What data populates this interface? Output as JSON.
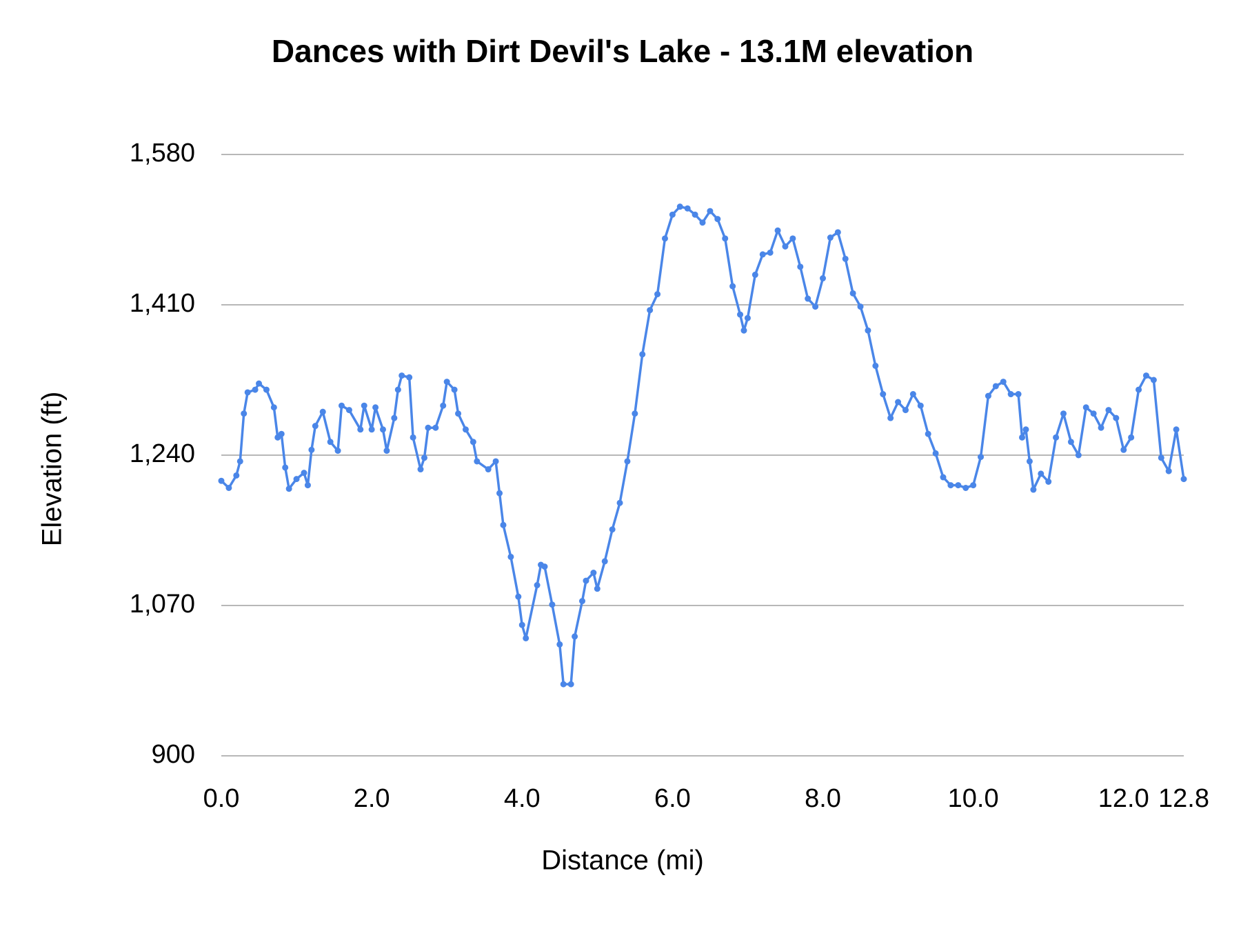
{
  "chart_data": {
    "type": "line",
    "title": "Dances with Dirt Devil's Lake - 13.1M elevation",
    "x_label": "Distance (mi)",
    "y_label": "Elevation (ft)",
    "x": [
      0,
      0.1,
      0.2,
      0.25,
      0.3,
      0.35,
      0.45,
      0.5,
      0.6,
      0.7,
      0.75,
      0.8,
      0.85,
      0.9,
      1.0,
      1.1,
      1.15,
      1.2,
      1.25,
      1.35,
      1.45,
      1.55,
      1.6,
      1.7,
      1.85,
      1.9,
      2.0,
      2.05,
      2.15,
      2.2,
      2.3,
      2.35,
      2.4,
      2.5,
      2.55,
      2.65,
      2.7,
      2.75,
      2.85,
      2.95,
      3.0,
      3.1,
      3.15,
      3.25,
      3.35,
      3.4,
      3.55,
      3.65,
      3.7,
      3.75,
      3.85,
      3.95,
      4.0,
      4.05,
      4.2,
      4.25,
      4.3,
      4.4,
      4.5,
      4.55,
      4.65,
      4.7,
      4.8,
      4.85,
      4.95,
      5.0,
      5.1,
      5.2,
      5.3,
      5.4,
      5.5,
      5.6,
      5.7,
      5.8,
      5.9,
      6.0,
      6.1,
      6.2,
      6.3,
      6.4,
      6.5,
      6.6,
      6.7,
      6.8,
      6.9,
      6.95,
      7.0,
      7.1,
      7.2,
      7.3,
      7.4,
      7.5,
      7.6,
      7.7,
      7.8,
      7.9,
      8.0,
      8.1,
      8.2,
      8.3,
      8.4,
      8.5,
      8.6,
      8.7,
      8.8,
      8.9,
      9.0,
      9.1,
      9.2,
      9.3,
      9.4,
      9.5,
      9.6,
      9.7,
      9.8,
      9.9,
      10.0,
      10.1,
      10.2,
      10.3,
      10.4,
      10.5,
      10.6,
      10.65,
      10.7,
      10.75,
      10.8,
      10.9,
      11.0,
      11.1,
      11.2,
      11.3,
      11.4,
      11.5,
      11.6,
      11.7,
      11.8,
      11.9,
      12.0,
      12.1,
      12.2,
      12.3,
      12.4,
      12.5,
      12.6,
      12.7,
      12.8
    ],
    "values": [
      1211,
      1203,
      1217,
      1233,
      1287,
      1311,
      1314,
      1321,
      1314,
      1294,
      1260,
      1264,
      1226,
      1202,
      1213,
      1220,
      1206,
      1246,
      1273,
      1289,
      1255,
      1245,
      1296,
      1291,
      1269,
      1296,
      1269,
      1294,
      1269,
      1245,
      1282,
      1314,
      1330,
      1328,
      1260,
      1224,
      1237,
      1271,
      1271,
      1296,
      1323,
      1314,
      1287,
      1269,
      1255,
      1233,
      1224,
      1233,
      1197,
      1161,
      1125,
      1080,
      1048,
      1033,
      1093,
      1116,
      1114,
      1071,
      1026,
      981,
      981,
      1035,
      1075,
      1098,
      1107,
      1089,
      1120,
      1156,
      1186,
      1233,
      1287,
      1354,
      1404,
      1422,
      1485,
      1512,
      1521,
      1519,
      1512,
      1503,
      1516,
      1507,
      1485,
      1431,
      1399,
      1381,
      1395,
      1444,
      1467,
      1469,
      1494,
      1476,
      1485,
      1453,
      1417,
      1408,
      1440,
      1486,
      1492,
      1462,
      1423,
      1408,
      1381,
      1341,
      1309,
      1282,
      1300,
      1291,
      1309,
      1296,
      1264,
      1242,
      1215,
      1206,
      1206,
      1203,
      1206,
      1238,
      1307,
      1318,
      1323,
      1309,
      1309,
      1260,
      1269,
      1233,
      1201,
      1219,
      1210,
      1260,
      1287,
      1255,
      1240,
      1294,
      1287,
      1271,
      1291,
      1282,
      1246,
      1260,
      1314,
      1330,
      1325,
      1237,
      1222,
      1269,
      1213
    ],
    "color": "#4a86e8",
    "markers": true,
    "grid": true,
    "xlim": [
      0,
      12.8
    ],
    "xticks": [
      {
        "value": 0,
        "label": "0.0"
      },
      {
        "value": 2,
        "label": "2.0"
      },
      {
        "value": 4,
        "label": "4.0"
      },
      {
        "value": 6,
        "label": "6.0"
      },
      {
        "value": 8,
        "label": "8.0"
      },
      {
        "value": 10,
        "label": "10.0"
      },
      {
        "value": 12,
        "label": "12.0"
      },
      12.8
    ],
    "ylim": [
      900,
      1580
    ],
    "yticks": [
      900,
      {
        "value": 1070,
        "label": "1,070"
      },
      {
        "value": 1240,
        "label": "1,240"
      },
      {
        "value": 1410,
        "label": "1,410"
      },
      {
        "value": 1580,
        "label": "1,580"
      }
    ]
  }
}
